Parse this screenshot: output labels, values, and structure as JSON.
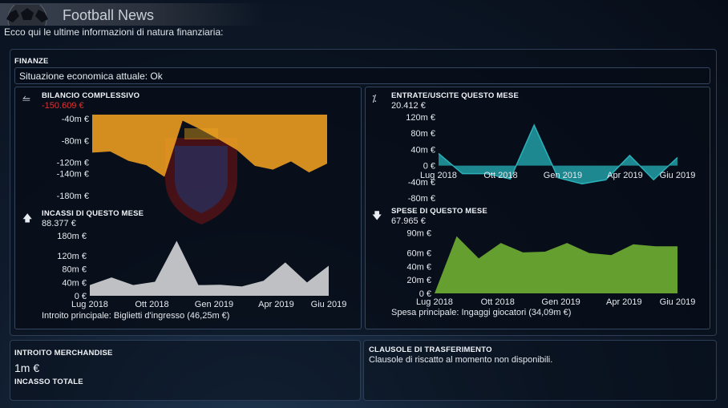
{
  "window": {
    "title": "Football News"
  },
  "intro_text": "Ecco qui le ultime informazioni di natura finanziaria:",
  "finance": {
    "header": "FINANZE",
    "status": "Situazione economica attuale: Ok"
  },
  "months": [
    "Lug 2018",
    "Ott 2018",
    "Gen 2019",
    "Apr 2019",
    "Giu 2019"
  ],
  "balance": {
    "header": "BILANCIO COMPLESSIVO",
    "value": "-150.609 €",
    "icon": "balance-icon",
    "fill_color": "#f0a020"
  },
  "income": {
    "header": "INCASSI DI QUESTO MESE",
    "value": "88.377 €",
    "icon": "arrow-up-icon",
    "fill_color": "#c9cacc",
    "main_label": "Introito principale:",
    "main_value": "Biglietti d'ingresso (46,25m €)"
  },
  "net": {
    "header": "ENTRATE/USCITE QUESTO MESE",
    "value": "20.412 €",
    "icon": "percent-icon",
    "fill_color": "#1f8f97"
  },
  "expenses": {
    "header": "SPESE DI QUESTO MESE",
    "value": "67.965 €",
    "icon": "arrow-down-icon",
    "fill_color": "#6aa832",
    "main_label": "Spesa principale:",
    "main_value": "Ingaggi giocatori (34,09m €)"
  },
  "merch": {
    "header": "INTROITO MERCHANDISE",
    "value": "1m €",
    "total_header": "INCASSO TOTALE"
  },
  "transfer": {
    "header": "CLAUSOLE DI TRASFERIMENTO",
    "text": "Clausole di riscatto al momento non disponibili."
  },
  "chart_data": [
    {
      "type": "area",
      "title": "BILANCIO COMPLESSIVO",
      "y_ticks": [
        -40,
        -80,
        -120,
        -140,
        -180
      ],
      "y_tick_labels": [
        "-40m €",
        "-80m €",
        "-120m €",
        "-140m €",
        "-180m €"
      ],
      "ylim": [
        -183,
        -33
      ],
      "x_tick_labels": [],
      "values": [
        -102,
        -100,
        -117,
        -125,
        -146,
        -44,
        -60,
        -78,
        -97,
        -126,
        -133,
        -118,
        -138,
        -122
      ]
    },
    {
      "type": "area",
      "title": "INCASSI DI QUESTO MESE",
      "y_ticks": [
        180,
        120,
        80,
        40,
        0
      ],
      "y_tick_labels": [
        "180m €",
        "120m €",
        "80m €",
        "40m €",
        "0 €"
      ],
      "ylim": [
        0,
        185
      ],
      "x_tick_labels": [
        "Lug 2018",
        "Ott 2018",
        "Gen 2019",
        "Apr 2019",
        "Giu 2019"
      ],
      "values": [
        32,
        55,
        32,
        42,
        165,
        32,
        33,
        28,
        45,
        100,
        40,
        90
      ]
    },
    {
      "type": "area",
      "title": "ENTRATE/USCITE QUESTO MESE",
      "y_ticks": [
        120,
        80,
        40,
        0,
        -40,
        -80
      ],
      "y_tick_labels": [
        "120m €",
        "80m €",
        "40m €",
        "0 €",
        "-40m €",
        "-80m €"
      ],
      "ylim": [
        -88,
        128
      ],
      "x_tick_labels": [
        "Lug 2018",
        "Ott 2018",
        "Gen 2019",
        "Apr 2019",
        "Giu 2019"
      ],
      "values": [
        30,
        -20,
        -20,
        -33,
        100,
        -30,
        -45,
        -35,
        25,
        -35,
        20
      ]
    },
    {
      "type": "area",
      "title": "SPESE DI QUESTO MESE",
      "y_ticks": [
        90,
        60,
        40,
        20,
        0
      ],
      "y_tick_labels": [
        "90m €",
        "60m €",
        "40m €",
        "20m €",
        "0 €"
      ],
      "ylim": [
        0,
        93
      ],
      "x_tick_labels": [
        "Lug 2018",
        "Ott 2018",
        "Gen 2019",
        "Apr 2019",
        "Giu 2019"
      ],
      "values": [
        0,
        85,
        52,
        75,
        61,
        62,
        75,
        60,
        57,
        73,
        70,
        70
      ]
    }
  ]
}
